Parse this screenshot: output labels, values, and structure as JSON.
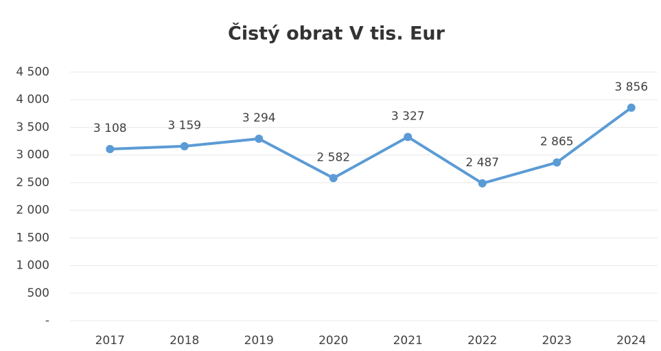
{
  "chart_data": {
    "type": "line",
    "title": "Čistý obrat V tis. Eur",
    "categories": [
      "2017",
      "2018",
      "2019",
      "2020",
      "2021",
      "2022",
      "2023",
      "2024"
    ],
    "series": [
      {
        "name": "Čistý obrat",
        "color": "#5b9bd5",
        "values": [
          3108,
          3159,
          3294,
          2582,
          3327,
          2487,
          2865,
          3856
        ],
        "value_labels": [
          "3 108",
          "3 159",
          "3 294",
          "2 582",
          "3 327",
          "2 487",
          "2 865",
          "3 856"
        ]
      }
    ],
    "ylim": [
      0,
      4500
    ],
    "yticks": [
      {
        "value": 0,
        "label": "-"
      },
      500,
      {
        "value": 1000,
        "label": "1 000"
      },
      {
        "value": 1500,
        "label": "1 500"
      },
      {
        "value": 2000,
        "label": "2 000"
      },
      {
        "value": 2500,
        "label": "2 500"
      },
      {
        "value": 3000,
        "label": "3 000"
      },
      {
        "value": 3500,
        "label": "3 500"
      },
      {
        "value": 4000,
        "label": "4 000"
      },
      {
        "value": 4500,
        "label": "4 500"
      }
    ],
    "grid": true
  }
}
